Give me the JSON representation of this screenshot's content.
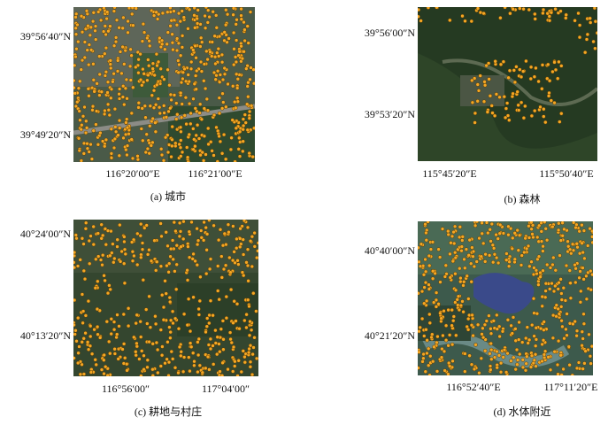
{
  "panels": [
    {
      "caption": "(a) 城市",
      "lat_labels": [
        "39°56′40″N",
        "39°49′20″N"
      ],
      "lon_labels": [
        "116°20′00″E",
        "116°21′00″E"
      ]
    },
    {
      "caption": "(b) 森林",
      "lat_labels": [
        "39°56′00″N",
        "39°53′20″N"
      ],
      "lon_labels": [
        "115°45′20″E",
        "115°50′40″E"
      ]
    },
    {
      "caption": "(c) 耕地与村庄",
      "lat_labels": [
        "40°24′00″N",
        "40°13′20″N"
      ],
      "lon_labels": [
        "116°56′00″",
        "117°04′00″"
      ]
    },
    {
      "caption": "(d) 水体附近",
      "lat_labels": [
        "40°40′00″N",
        "40°21′20″N"
      ],
      "lon_labels": [
        "116°52′40″E",
        "117°11′20″E"
      ]
    }
  ]
}
